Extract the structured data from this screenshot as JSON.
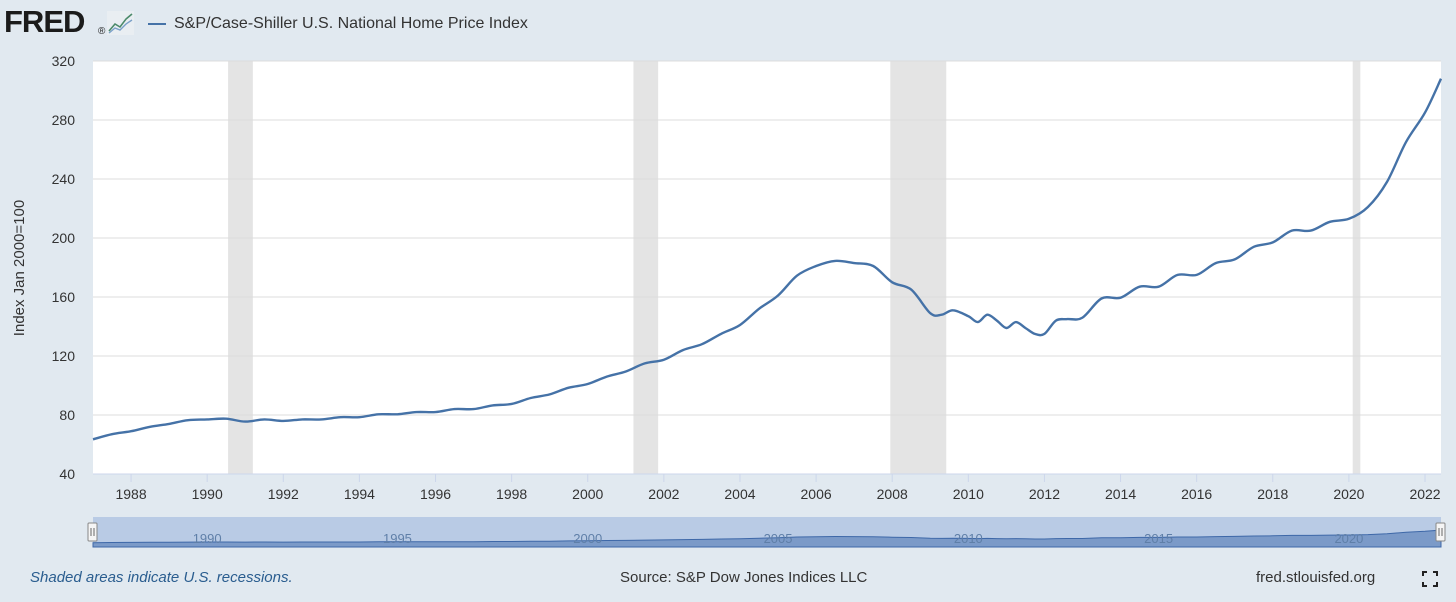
{
  "header": {
    "logo_text": "FRED",
    "series_label": "S&P/Case-Shiller U.S. National Home Price Index",
    "line_color": "#4572a7"
  },
  "footer": {
    "recession_note": "Shaded areas indicate U.S. recessions.",
    "source": "Source: S&P Dow Jones Indices LLC",
    "site": "fred.stlouisfed.org"
  },
  "navigator": {
    "labels": [
      "1990",
      "1995",
      "2000",
      "2005",
      "2010",
      "2015",
      "2020"
    ]
  },
  "chart_data": {
    "type": "line",
    "title": "",
    "xlabel": "",
    "ylabel": "Index Jan 2000=100",
    "xlim": [
      1987.0,
      2022.42
    ],
    "ylim": [
      40,
      320
    ],
    "y_ticks": [
      40,
      80,
      120,
      160,
      200,
      240,
      280,
      320
    ],
    "x_ticks": [
      1988,
      1990,
      1992,
      1994,
      1996,
      1998,
      2000,
      2002,
      2004,
      2006,
      2008,
      2010,
      2012,
      2014,
      2016,
      2018,
      2020,
      2022
    ],
    "grid": true,
    "legend": "top-left",
    "recessions": [
      [
        1990.55,
        1991.2
      ],
      [
        2001.2,
        2001.85
      ],
      [
        2007.95,
        2009.42
      ],
      [
        2020.1,
        2020.3
      ]
    ],
    "series": [
      {
        "name": "S&P/Case-Shiller U.S. National Home Price Index",
        "x": [
          1987.0,
          1987.5,
          1988.0,
          1988.5,
          1989.0,
          1989.5,
          1990.0,
          1990.5,
          1991.0,
          1991.5,
          1992.0,
          1992.5,
          1993.0,
          1993.5,
          1994.0,
          1994.5,
          1995.0,
          1995.5,
          1996.0,
          1996.5,
          1997.0,
          1997.5,
          1998.0,
          1998.5,
          1999.0,
          1999.5,
          2000.0,
          2000.5,
          2001.0,
          2001.5,
          2002.0,
          2002.5,
          2003.0,
          2003.5,
          2004.0,
          2004.5,
          2005.0,
          2005.5,
          2006.0,
          2006.5,
          2007.0,
          2007.5,
          2008.0,
          2008.5,
          2009.0,
          2009.3,
          2009.6,
          2010.0,
          2010.25,
          2010.5,
          2010.75,
          2011.0,
          2011.25,
          2011.5,
          2011.75,
          2012.0,
          2012.3,
          2012.6,
          2013.0,
          2013.5,
          2014.0,
          2014.5,
          2015.0,
          2015.5,
          2016.0,
          2016.5,
          2017.0,
          2017.5,
          2018.0,
          2018.5,
          2019.0,
          2019.5,
          2020.0,
          2020.5,
          2021.0,
          2021.5,
          2022.0,
          2022.42
        ],
        "values": [
          63.5,
          67,
          69,
          72,
          74,
          76.5,
          77,
          77.5,
          75.5,
          77,
          76,
          77,
          77,
          78.5,
          78.5,
          80.5,
          80.5,
          82,
          82,
          84,
          84,
          86.5,
          87.5,
          91.5,
          94,
          98.5,
          101,
          106,
          109.5,
          115,
          117.5,
          124,
          128,
          135,
          141,
          152,
          161,
          174.5,
          181,
          184.5,
          183,
          181,
          170,
          165,
          149,
          148,
          151,
          147,
          143,
          148,
          144,
          139,
          143,
          139,
          135,
          135,
          144,
          145,
          146,
          159,
          159.5,
          167,
          167,
          175,
          175,
          183,
          185.5,
          194,
          197,
          205,
          205,
          211,
          213,
          221,
          238,
          265,
          285,
          308
        ]
      }
    ]
  }
}
